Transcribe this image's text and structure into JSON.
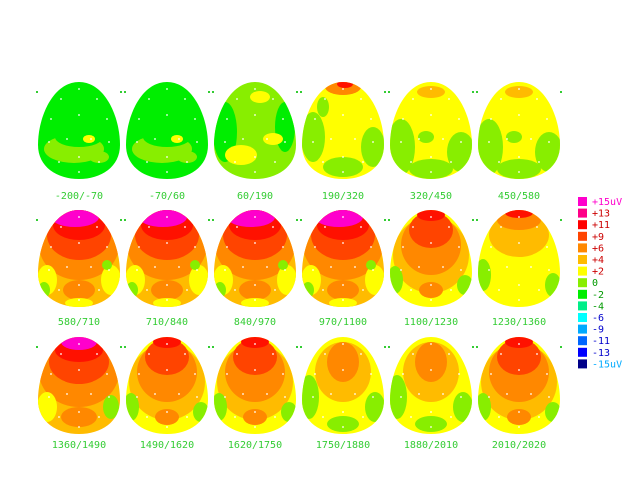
{
  "maps": [
    {
      "label": "-200/-70",
      "pattern": "flat_green"
    },
    {
      "label": "-70/60",
      "pattern": "flat_green"
    },
    {
      "label": "60/190",
      "pattern": "green_light"
    },
    {
      "label": "190/320",
      "pattern": "yellow_green_top_red"
    },
    {
      "label": "320/450",
      "pattern": "yellow_green"
    },
    {
      "label": "450/580",
      "pattern": "yellow_green"
    },
    {
      "label": "580/710",
      "pattern": "magenta_red_strong"
    },
    {
      "label": "710/840",
      "pattern": "magenta_red_strong"
    },
    {
      "label": "840/970",
      "pattern": "magenta_red_strong"
    },
    {
      "label": "970/1100",
      "pattern": "magenta_red_strong"
    },
    {
      "label": "1100/1230",
      "pattern": "orange_red"
    },
    {
      "label": "1230/1360",
      "pattern": "yellow_orange_top_red"
    },
    {
      "label": "1360/1490",
      "pattern": "magenta_red_mid"
    },
    {
      "label": "1490/1620",
      "pattern": "orange_red"
    },
    {
      "label": "1620/1750",
      "pattern": "orange_red"
    },
    {
      "label": "1750/1880",
      "pattern": "yellow_orange"
    },
    {
      "label": "1880/2010",
      "pattern": "yellow_orange"
    },
    {
      "label": "2010/2020",
      "pattern": "orange_red"
    }
  ],
  "legend": [
    {
      "label": "+15uV",
      "color": "#ff00cc",
      "text_color": "#ff00cc"
    },
    {
      "label": "+13",
      "color": "#ff0088",
      "text_color": "#cc0000"
    },
    {
      "label": "+11",
      "color": "#ff0000",
      "text_color": "#cc0000"
    },
    {
      "label": "+9",
      "color": "#ff4400",
      "text_color": "#cc0000"
    },
    {
      "label": "+6",
      "color": "#ff8800",
      "text_color": "#cc0000"
    },
    {
      "label": "+4",
      "color": "#ffbb00",
      "text_color": "#cc0000"
    },
    {
      "label": "+2",
      "color": "#ffff00",
      "text_color": "#cc0000"
    },
    {
      "label": "0",
      "color": "#88ee00",
      "text_color": "#009900"
    },
    {
      "label": "-2",
      "color": "#00ee00",
      "text_color": "#009900"
    },
    {
      "label": "-4",
      "color": "#00ee88",
      "text_color": "#009900"
    },
    {
      "label": "-6",
      "color": "#00ffff",
      "text_color": "#0000cc"
    },
    {
      "label": "-9",
      "color": "#00aaff",
      "text_color": "#0000cc"
    },
    {
      "label": "-11",
      "color": "#0066ff",
      "text_color": "#0000cc"
    },
    {
      "label": "-13",
      "color": "#0000ff",
      "text_color": "#0000cc"
    },
    {
      "label": "-15uV",
      "color": "#000088",
      "text_color": "#00aaff"
    }
  ],
  "colors": {
    "caption": "#33cc33",
    "background": "#ffffff"
  }
}
